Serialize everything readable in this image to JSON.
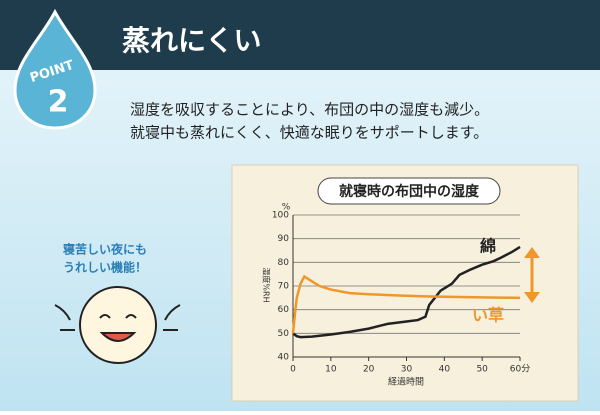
{
  "header": {
    "title": "蒸れにくい",
    "point_label": "POINT",
    "point_number": "2"
  },
  "description": [
    "湿度を吸収することにより、布団の中の湿度も減少。",
    "就寝中も蒸れにくく、快適な眠りをサポートします。"
  ],
  "side_note": [
    "寝苦しい夜にも",
    "うれしい機能！"
  ],
  "chart_data": {
    "type": "line",
    "title": "就寝時の布団中の湿度",
    "x_label": "経過時間",
    "y_label": "湿度%RH",
    "y_unit": "%",
    "xlim": [
      0,
      60
    ],
    "xticks": [
      0,
      10,
      20,
      30,
      40,
      50,
      {
        "value": 60,
        "label": "60分"
      }
    ],
    "ylim": [
      40,
      100
    ],
    "yticks": [
      40,
      50,
      60,
      70,
      80,
      90,
      100
    ],
    "grid": true,
    "series": [
      {
        "name": "綿",
        "color": "#222222",
        "x": [
          0,
          1,
          2,
          5,
          10,
          15,
          20,
          25,
          30,
          33,
          35,
          36,
          39,
          42,
          44,
          47,
          50,
          53,
          55,
          58,
          60
        ],
        "values": [
          50,
          48.8,
          48.4,
          48.6,
          49.5,
          50.6,
          52,
          54,
          55,
          55.6,
          57,
          62,
          68,
          71,
          74.7,
          77,
          79,
          80.5,
          82,
          84.5,
          86.5
        ]
      },
      {
        "name": "い草",
        "color": "#f0962a",
        "x": [
          0,
          0.5,
          1,
          2,
          3,
          5,
          7,
          10,
          15,
          20,
          28,
          35,
          42,
          50,
          60
        ],
        "values": [
          50,
          58,
          65,
          71,
          74,
          72,
          70,
          68.5,
          67,
          66.5,
          66,
          65.6,
          65.4,
          65.2,
          65
        ]
      }
    ]
  }
}
